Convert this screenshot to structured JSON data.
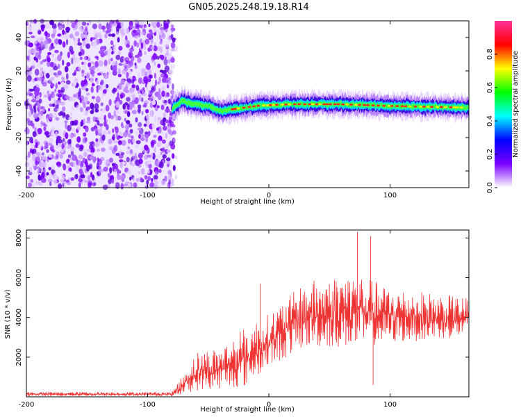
{
  "title": "GN05.2025.248.19.18.R14",
  "chart_data": [
    {
      "type": "heatmap",
      "panel": "spectrogram",
      "xlabel": "Height of straight line (km)",
      "ylabel": "Frequency (Hz)",
      "xlim": [
        -200,
        165
      ],
      "ylim": [
        -50,
        50
      ],
      "x_ticks": [
        "-200",
        "-100",
        "0",
        "100"
      ],
      "y_ticks": [
        "40",
        "20",
        "0",
        "-20",
        "-40"
      ],
      "noise_region_x": [
        -200,
        -80
      ],
      "signal_region_x": [
        -80,
        165
      ],
      "signal_ridge": [
        {
          "x": -80,
          "y": -3
        },
        {
          "x": -72,
          "y": 2
        },
        {
          "x": -60,
          "y": 0
        },
        {
          "x": -50,
          "y": -1
        },
        {
          "x": -40,
          "y": -4
        },
        {
          "x": -30,
          "y": -3
        },
        {
          "x": -20,
          "y": -2
        },
        {
          "x": -10,
          "y": -1
        },
        {
          "x": 0,
          "y": -0.5
        },
        {
          "x": 20,
          "y": 0
        },
        {
          "x": 60,
          "y": 0
        },
        {
          "x": 100,
          "y": -1
        },
        {
          "x": 130,
          "y": -1.5
        },
        {
          "x": 165,
          "y": -2
        }
      ],
      "colorbar": {
        "label": "Normalized spectral amplitude",
        "range": [
          0,
          1
        ],
        "ticks": [
          "0.0",
          "0.2",
          "0.4",
          "0.6",
          "0.8"
        ],
        "colors": [
          "#ffffff",
          "#7b00ff",
          "#0000ff",
          "#00ffff",
          "#00ff00",
          "#ffff00",
          "#ff0000",
          "#ff3399"
        ]
      }
    },
    {
      "type": "line",
      "panel": "snr",
      "xlabel": "Height of straight line (km)",
      "ylabel": "SNR (10 * v/v)",
      "xlim": [
        -200,
        165
      ],
      "ylim": [
        0,
        8400
      ],
      "x_ticks": [
        "-200",
        "-100",
        "0",
        "100"
      ],
      "y_ticks": [
        "8000",
        "6000",
        "4000",
        "2000"
      ],
      "series_color": "#ee3333",
      "envelope": [
        {
          "x": -200,
          "lo": 40,
          "hi": 250
        },
        {
          "x": -80,
          "lo": 40,
          "hi": 250
        },
        {
          "x": -70,
          "lo": 150,
          "hi": 1200
        },
        {
          "x": -60,
          "lo": 300,
          "hi": 2300
        },
        {
          "x": -40,
          "lo": 400,
          "hi": 2500
        },
        {
          "x": -20,
          "lo": 500,
          "hi": 3500
        },
        {
          "x": 0,
          "lo": 1500,
          "hi": 4200
        },
        {
          "x": 30,
          "lo": 2500,
          "hi": 5800
        },
        {
          "x": 70,
          "lo": 2500,
          "hi": 6300
        },
        {
          "x": 100,
          "lo": 2700,
          "hi": 5500
        },
        {
          "x": 165,
          "lo": 3000,
          "hi": 5000
        }
      ],
      "spikes": [
        {
          "x": -7,
          "y": 5700
        },
        {
          "x": 73,
          "y": 8300
        },
        {
          "x": 84,
          "y": 8100
        },
        {
          "x": 86,
          "y": 600
        }
      ]
    }
  ]
}
